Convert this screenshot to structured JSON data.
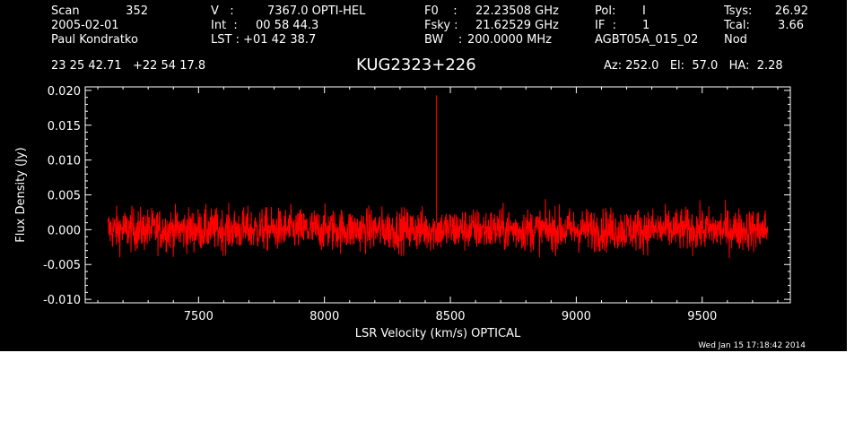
{
  "header": {
    "scan_label": "Scan",
    "scan_value": "352",
    "date": "2005-02-01",
    "observer": "Paul Kondratko",
    "v_label": "V   :",
    "v_value": "7367.0 OPTI-HEL",
    "int_label": "Int  :",
    "int_value": "00 58 44.3",
    "lst_label": "LST : +01 42 38.7",
    "f0_label": "F0    :",
    "f0_value": "22.23508 GHz",
    "fsky_label": "Fsky :",
    "fsky_value": "21.62529 GHz",
    "bw_label": "BW    :",
    "bw_value": "200.0000 MHz",
    "pol_label": "Pol:",
    "pol_value": "I",
    "if_label": "IF  :",
    "if_value": "1",
    "project": "AGBT05A_015_02",
    "tsys_label": "Tsys:",
    "tsys_value": "26.92",
    "tcal_label": "Tcal:",
    "tcal_value": "3.66",
    "mode": "Nod",
    "coords": "23 25 42.71   +22 54 17.8",
    "az_el_ha": "Az: 252.0   El:  57.0   HA:  2.28"
  },
  "footer": {
    "timestamp": "Wed Jan 15 17:18:42 2014"
  },
  "colors": {
    "background": "#000000",
    "axes": "#ffffff",
    "trace": "#ff0000"
  },
  "chart_data": {
    "type": "line",
    "title": "KUG2323+226",
    "xlabel": "LSR Velocity (km/s) OPTICAL",
    "ylabel": "Flux Density (Jy)",
    "xlim": [
      7050,
      9850
    ],
    "ylim": [
      -0.0105,
      0.0205
    ],
    "xticks": [
      7500,
      8000,
      8500,
      9000,
      9500
    ],
    "yticks": [
      -0.01,
      -0.005,
      0.0,
      0.005,
      0.01,
      0.015,
      0.02
    ],
    "ytick_labels": [
      "-0.010",
      "-0.005",
      "0.000",
      "0.005",
      "0.010",
      "0.015",
      "0.020"
    ],
    "grid": false,
    "series": [
      {
        "color": "#ff0000",
        "x_range": [
          7140,
          9760
        ],
        "baseline": 0.0,
        "noise_rms": 0.0015,
        "spike": {
          "x": 8445,
          "y": 0.0193
        }
      }
    ]
  }
}
